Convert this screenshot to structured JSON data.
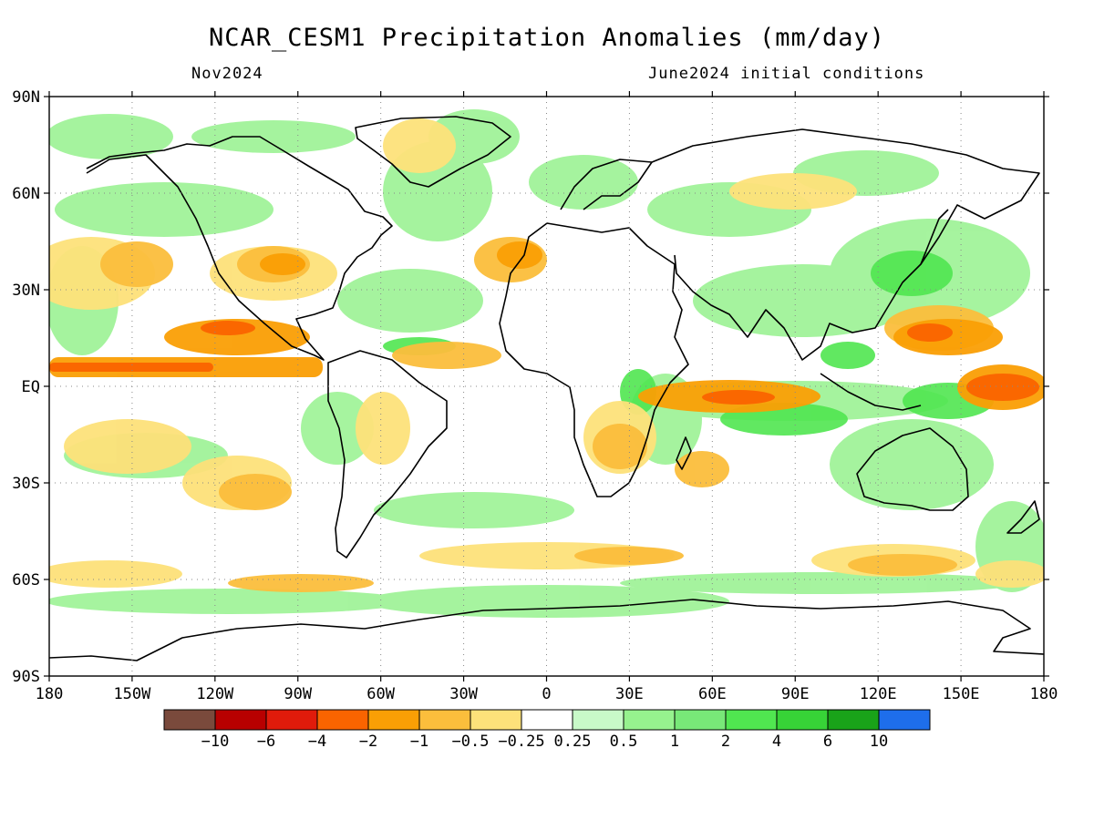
{
  "title": "NCAR_CESM1 Precipitation Anomalies (mm/day)",
  "subtitle_left": "Nov2024",
  "subtitle_right": "June2024 initial conditions",
  "axes": {
    "lon_ticks": [
      "180",
      "150W",
      "120W",
      "90W",
      "60W",
      "30W",
      "0",
      "30E",
      "60E",
      "90E",
      "120E",
      "150E",
      "180"
    ],
    "lat_ticks": [
      "90N",
      "60N",
      "30N",
      "EQ",
      "30S",
      "60S",
      "90S"
    ]
  },
  "legend": {
    "colors": [
      "#7a4a3c",
      "#b80000",
      "#e01b0b",
      "#fa6400",
      "#fa9f05",
      "#fbbe3c",
      "#fde17a",
      "#ffffff",
      "#c8fac8",
      "#96f28e",
      "#78e878",
      "#50e650",
      "#37d337",
      "#19a319",
      "#1e6eeb"
    ],
    "labels": [
      "−10",
      "−6",
      "−4",
      "−2",
      "−1",
      "−0.5",
      "−0.25",
      "0.25",
      "0.5",
      "1",
      "2",
      "4",
      "6",
      "10"
    ]
  }
}
